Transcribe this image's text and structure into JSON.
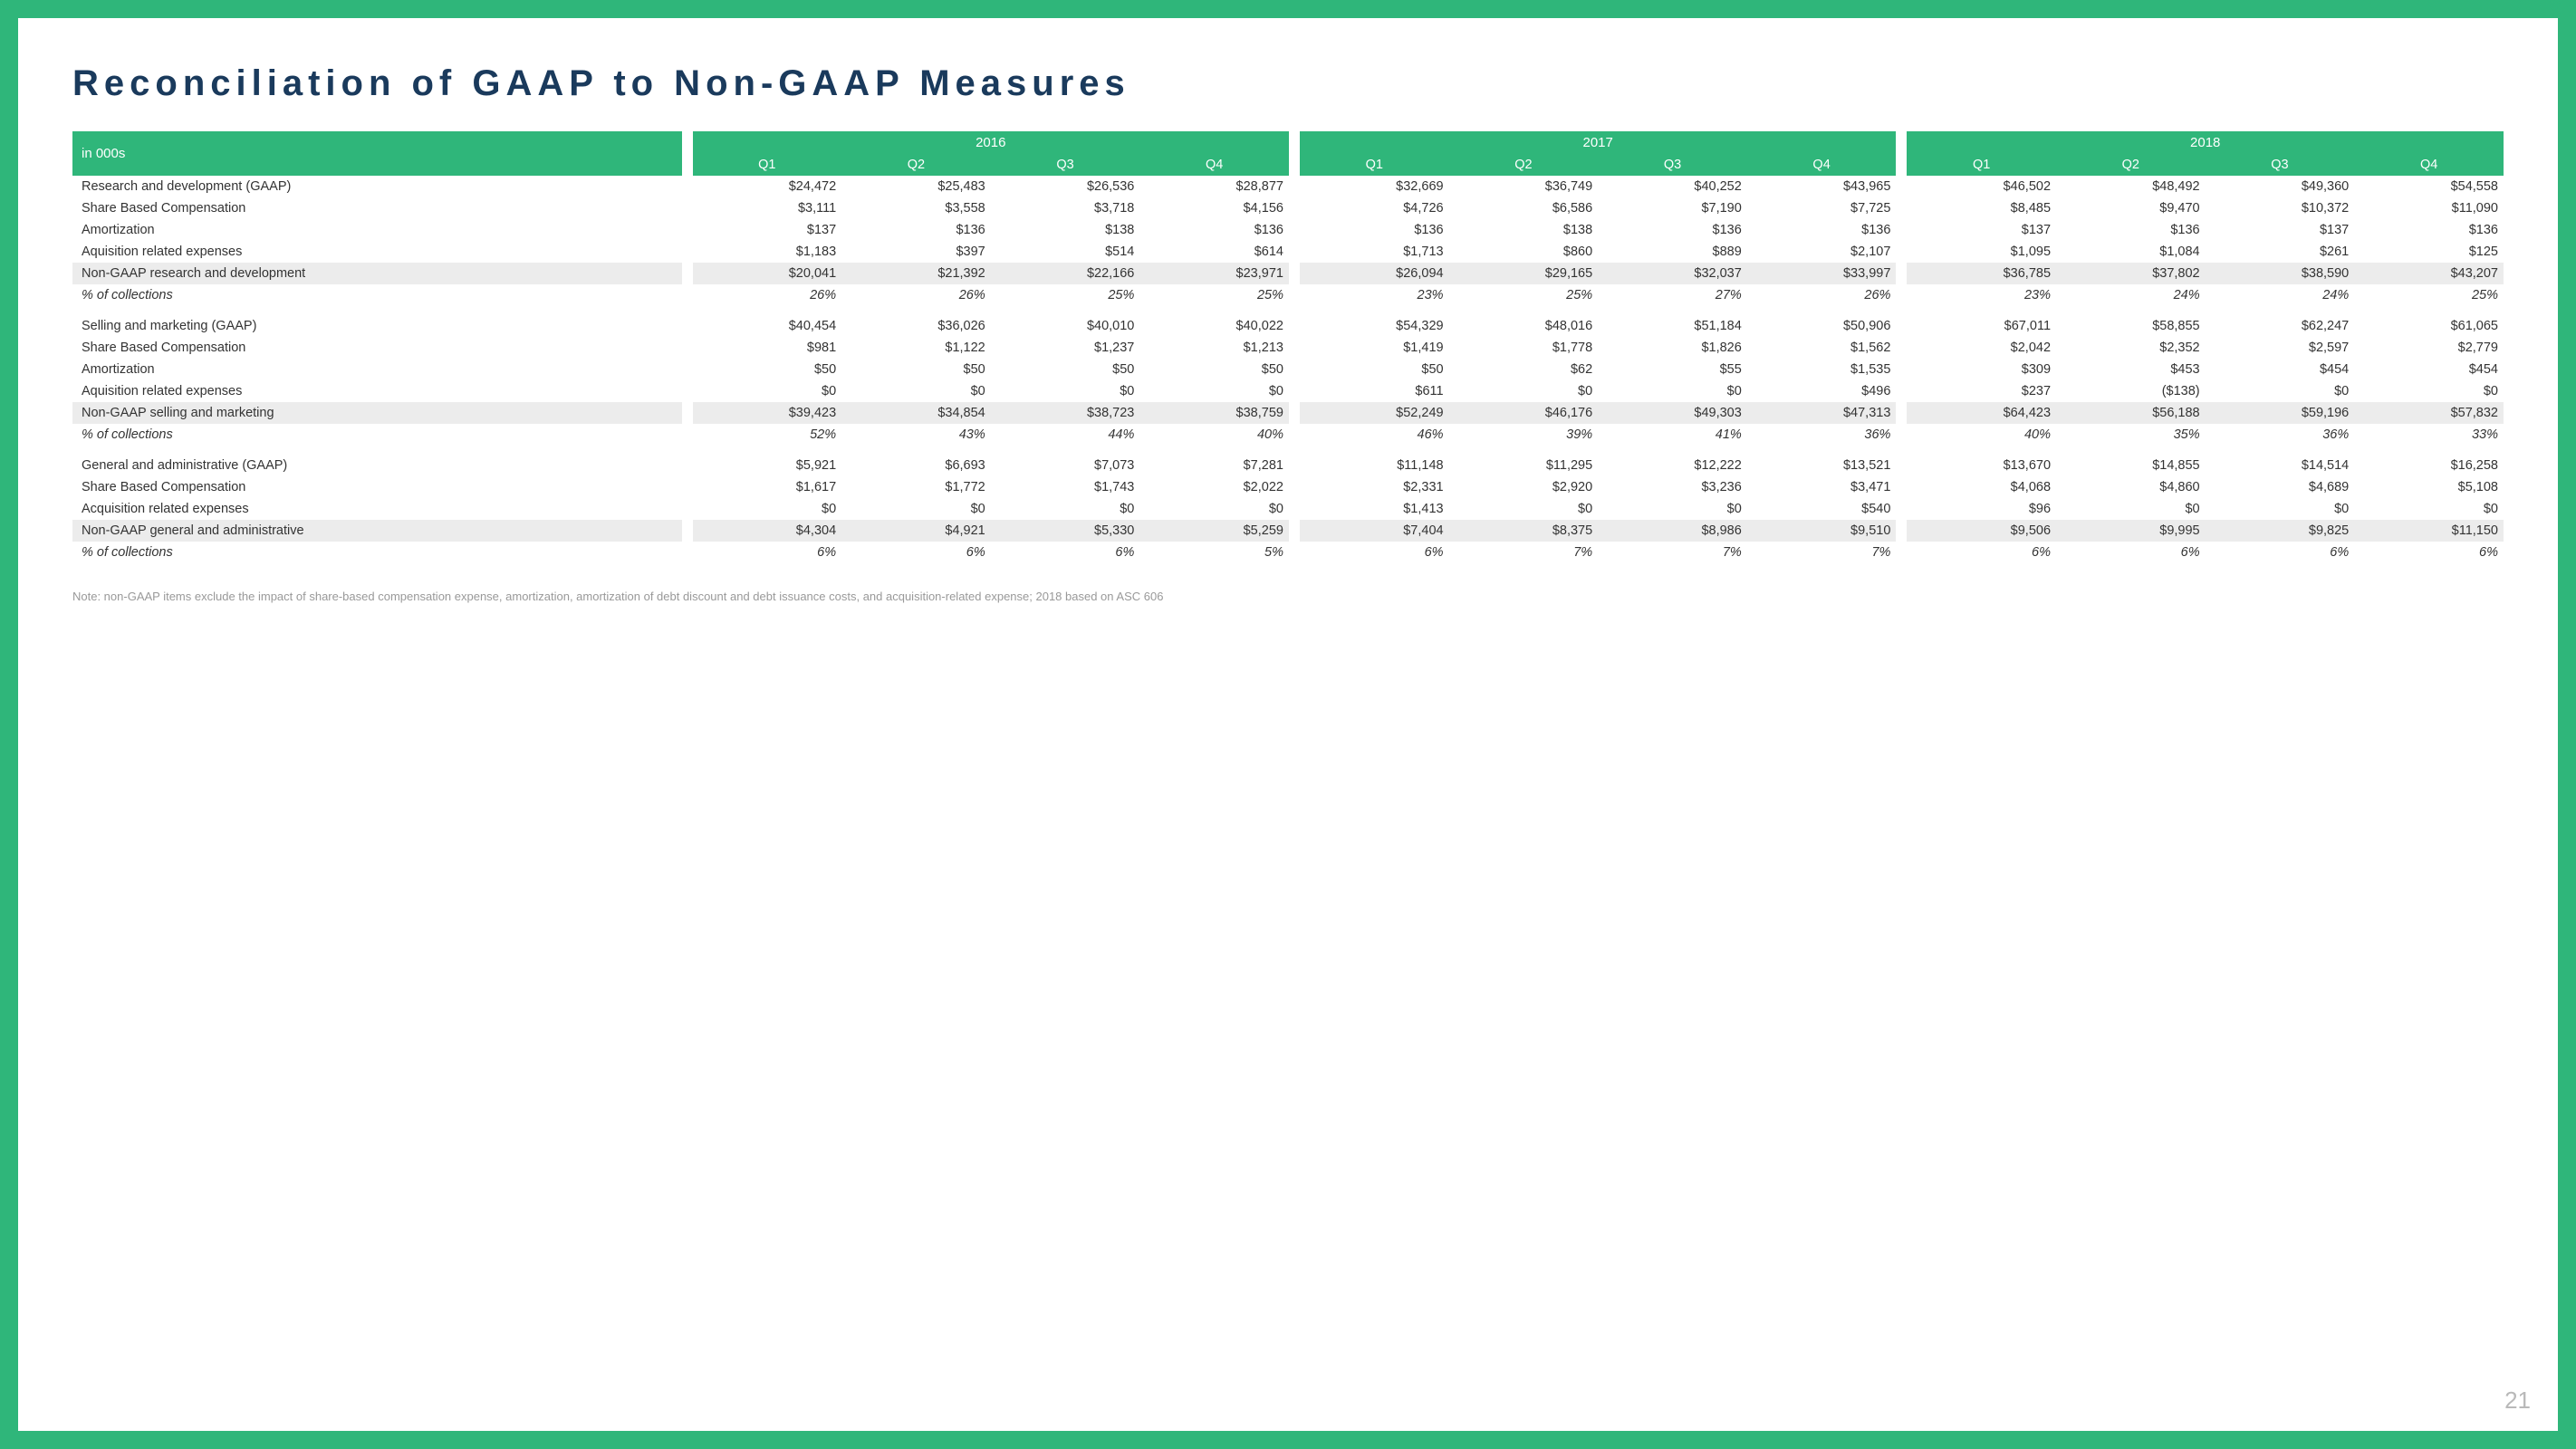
{
  "title": "Reconciliation of GAAP to Non-GAAP Measures",
  "header_label": "in 000s",
  "years": [
    "2016",
    "2017",
    "2018"
  ],
  "quarters": [
    "Q1",
    "Q2",
    "Q3",
    "Q4"
  ],
  "page_number": "21",
  "footnote": "Note: non-GAAP items exclude the impact of share-based compensation expense, amortization, amortization of debt discount and debt issuance costs, and acquisition-related expense; 2018 based on ASC 606",
  "colors": {
    "brand_green": "#2fb67a",
    "title_blue": "#1a3a5c",
    "highlight_bg": "#ececec",
    "footnote_grey": "#999999",
    "page_grey": "#b9b9b9"
  },
  "rows": [
    {
      "label": "Research and development (GAAP)",
      "type": "normal",
      "values": [
        "$24,472",
        "$25,483",
        "$26,536",
        "$28,877",
        "$32,669",
        "$36,749",
        "$40,252",
        "$43,965",
        "$46,502",
        "$48,492",
        "$49,360",
        "$54,558"
      ]
    },
    {
      "label": "Share Based Compensation",
      "type": "normal",
      "values": [
        "$3,111",
        "$3,558",
        "$3,718",
        "$4,156",
        "$4,726",
        "$6,586",
        "$7,190",
        "$7,725",
        "$8,485",
        "$9,470",
        "$10,372",
        "$11,090"
      ]
    },
    {
      "label": "Amortization",
      "type": "normal",
      "values": [
        "$137",
        "$136",
        "$138",
        "$136",
        "$136",
        "$138",
        "$136",
        "$136",
        "$137",
        "$136",
        "$137",
        "$136"
      ]
    },
    {
      "label": "Aquisition related expenses",
      "type": "normal",
      "values": [
        "$1,183",
        "$397",
        "$514",
        "$614",
        "$1,713",
        "$860",
        "$889",
        "$2,107",
        "$1,095",
        "$1,084",
        "$261",
        "$125"
      ]
    },
    {
      "label": "Non-GAAP research and development",
      "type": "highlight",
      "values": [
        "$20,041",
        "$21,392",
        "$22,166",
        "$23,971",
        "$26,094",
        "$29,165",
        "$32,037",
        "$33,997",
        "$36,785",
        "$37,802",
        "$38,590",
        "$43,207"
      ]
    },
    {
      "label": "% of collections",
      "type": "italic",
      "values": [
        "26%",
        "26%",
        "25%",
        "25%",
        "23%",
        "25%",
        "27%",
        "26%",
        "23%",
        "24%",
        "24%",
        "25%"
      ]
    },
    {
      "label": "Selling and marketing (GAAP)",
      "type": "gap",
      "values": [
        "$40,454",
        "$36,026",
        "$40,010",
        "$40,022",
        "$54,329",
        "$48,016",
        "$51,184",
        "$50,906",
        "$67,011",
        "$58,855",
        "$62,247",
        "$61,065"
      ]
    },
    {
      "label": "Share Based Compensation",
      "type": "normal",
      "values": [
        "$981",
        "$1,122",
        "$1,237",
        "$1,213",
        "$1,419",
        "$1,778",
        "$1,826",
        "$1,562",
        "$2,042",
        "$2,352",
        "$2,597",
        "$2,779"
      ]
    },
    {
      "label": "Amortization",
      "type": "normal",
      "values": [
        "$50",
        "$50",
        "$50",
        "$50",
        "$50",
        "$62",
        "$55",
        "$1,535",
        "$309",
        "$453",
        "$454",
        "$454"
      ]
    },
    {
      "label": "Aquisition related expenses",
      "type": "normal",
      "values": [
        "$0",
        "$0",
        "$0",
        "$0",
        "$611",
        "$0",
        "$0",
        "$496",
        "$237",
        "($138)",
        "$0",
        "$0"
      ]
    },
    {
      "label": "Non-GAAP selling and marketing",
      "type": "highlight",
      "values": [
        "$39,423",
        "$34,854",
        "$38,723",
        "$38,759",
        "$52,249",
        "$46,176",
        "$49,303",
        "$47,313",
        "$64,423",
        "$56,188",
        "$59,196",
        "$57,832"
      ]
    },
    {
      "label": "% of collections",
      "type": "italic",
      "values": [
        "52%",
        "43%",
        "44%",
        "40%",
        "46%",
        "39%",
        "41%",
        "36%",
        "40%",
        "35%",
        "36%",
        "33%"
      ]
    },
    {
      "label": "General and administrative (GAAP)",
      "type": "gap",
      "values": [
        "$5,921",
        "$6,693",
        "$7,073",
        "$7,281",
        "$11,148",
        "$11,295",
        "$12,222",
        "$13,521",
        "$13,670",
        "$14,855",
        "$14,514",
        "$16,258"
      ]
    },
    {
      "label": "Share Based Compensation",
      "type": "normal",
      "values": [
        "$1,617",
        "$1,772",
        "$1,743",
        "$2,022",
        "$2,331",
        "$2,920",
        "$3,236",
        "$3,471",
        "$4,068",
        "$4,860",
        "$4,689",
        "$5,108"
      ]
    },
    {
      "label": "Acquisition related expenses",
      "type": "normal",
      "values": [
        "$0",
        "$0",
        "$0",
        "$0",
        "$1,413",
        "$0",
        "$0",
        "$540",
        "$96",
        "$0",
        "$0",
        "$0"
      ]
    },
    {
      "label": "Non-GAAP general and administrative",
      "type": "highlight",
      "values": [
        "$4,304",
        "$4,921",
        "$5,330",
        "$5,259",
        "$7,404",
        "$8,375",
        "$8,986",
        "$9,510",
        "$9,506",
        "$9,995",
        "$9,825",
        "$11,150"
      ]
    },
    {
      "label": "% of collections",
      "type": "italic",
      "values": [
        "6%",
        "6%",
        "6%",
        "5%",
        "6%",
        "7%",
        "7%",
        "7%",
        "6%",
        "6%",
        "6%",
        "6%"
      ]
    }
  ]
}
